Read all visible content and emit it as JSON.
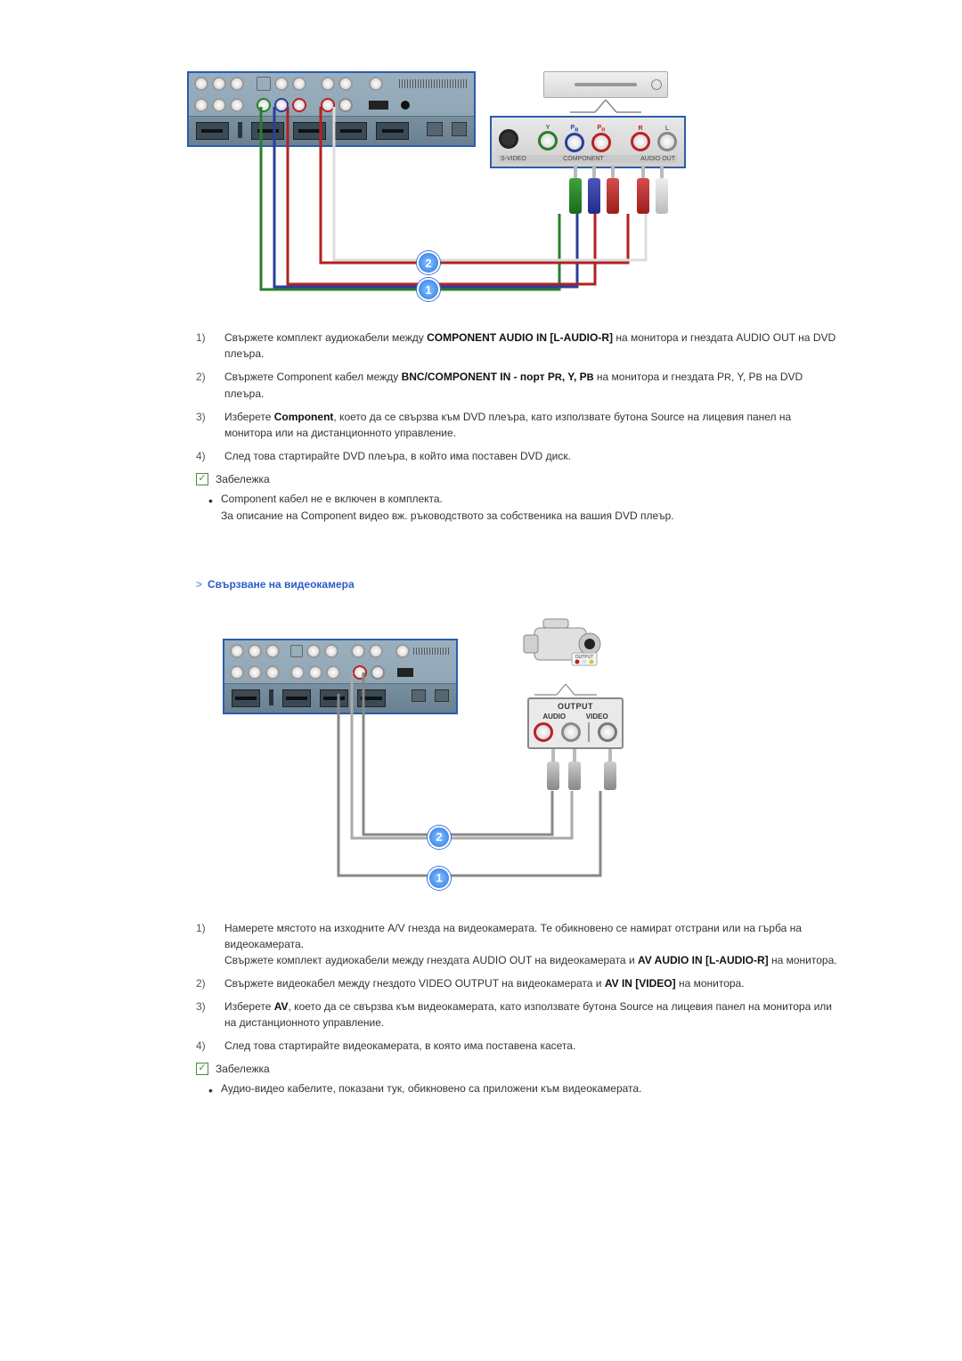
{
  "colors": {
    "accent_blue": "#2a5cc9",
    "wire_green": "#2a7d2a",
    "wire_blue": "#2a3f9d",
    "wire_red": "#b22222",
    "wire_white": "#dddddd",
    "badge_blue": "#2e6bd8",
    "panel_bg_top": "#9ab0bf",
    "panel_bg_bottom": "#8aa0af"
  },
  "diagram1": {
    "type": "infographic",
    "badge1": "1",
    "badge2": "2",
    "device_labels": {
      "svideo": "S-VIDEO",
      "component": "COMPONENT",
      "audio_out": "AUDIO OUT"
    },
    "callouts": [
      "1",
      "2"
    ]
  },
  "section1_steps": [
    {
      "num": "1)",
      "html": "Свържете комплект аудиокабели между <b>COMPONENT AUDIO IN [L-AUDIO-R]</b> на монитора и гнездата AUDIO OUT на DVD плеъра."
    },
    {
      "num": "2)",
      "html": "Свържете Component кабел между <b>BNC/COMPONENT IN - порт P<span style='font-size:11px'>R</span>, Y, P<span style='font-size:11px'>B</span></b> на монитора и гнездата P<span style='font-size:11px'>R</span>, Y, P<span style='font-size:11px'>B</span> на DVD плеъра."
    },
    {
      "num": "3)",
      "html": "Изберете <b>Component</b>, което да се свързва към DVD плеъра, като използвате бутона Source на лицевия панел на монитора или на дистанционното управление."
    },
    {
      "num": "4)",
      "html": "След това стартирайте DVD плеъра, в който има поставен DVD диск."
    }
  ],
  "note_label": "Забележка",
  "section1_notes": [
    "Component кабел не е включен в комплекта.\nЗа описание на Component видео вж. ръководството за собственика на вашия DVD плеър."
  ],
  "section2_title": "Свързване на видеокамера",
  "diagram2": {
    "type": "infographic",
    "badge1": "1",
    "badge2": "2",
    "output_label": "OUTPUT",
    "audio_label": "AUDIO",
    "video_label": "VIDEO",
    "cam_mini_labels": {
      "output": "OUTPUT",
      "audio": "AUDIO",
      "video": "VIDEO"
    }
  },
  "section2_steps": [
    {
      "num": "1)",
      "html": "Намерете мястото на изходните A/V гнезда на видеокамерата. Те обикновено се намират отстрани или на гърба на видеокамерата.<br>Свържете комплект аудиокабели между гнездата AUDIO OUT на видеокамерата и <b>AV AUDIO IN [L-AUDIO-R]</b> на монитора."
    },
    {
      "num": "2)",
      "html": "Свържете видеокабел между гнездото VIDEO OUTPUT на видеокамерата и <b>AV IN [VIDEO]</b> на монитора."
    },
    {
      "num": "3)",
      "html": "Изберете <b>AV</b>, което да се свързва към видеокамерата, като използвате бутона Source на лицевия панел на монитора или на дистанционното управление."
    },
    {
      "num": "4)",
      "html": "След това стартирайте видеокамерата, в която има поставена касета."
    }
  ],
  "section2_notes": [
    "Аудио-видео кабелите, показани тук, обикновено са приложени към видеокамерата."
  ]
}
